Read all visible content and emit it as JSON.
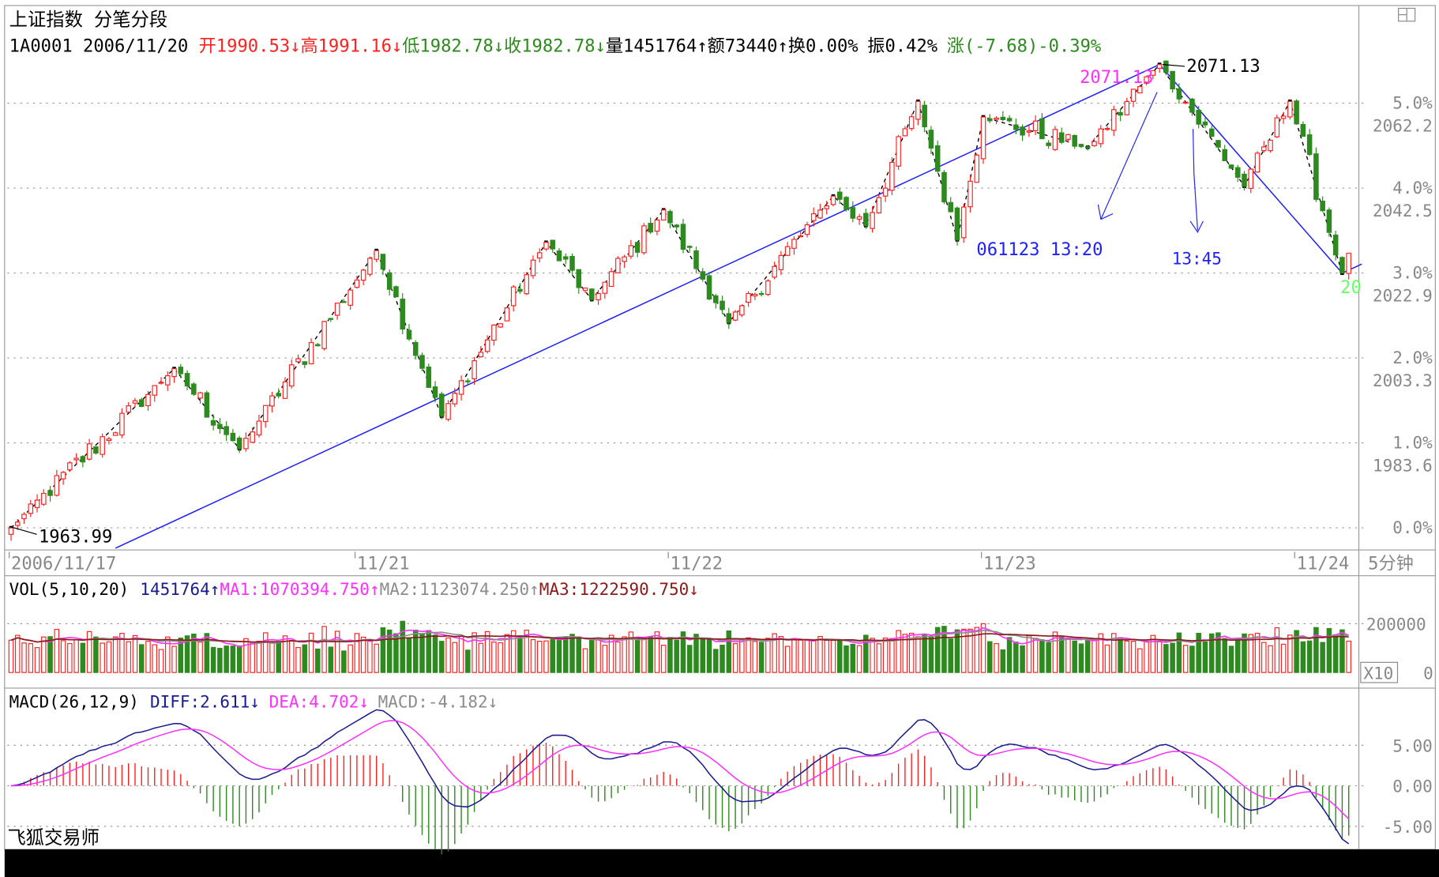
{
  "header": {
    "title": "上证指数 分笔分段",
    "code": "1A0001 2006/11/20 ",
    "open": "开1990.53↓",
    "high": "高1991.16↓",
    "low": "低1982.78↓",
    "close": "收1982.78↓",
    "volume": "量1451764↑",
    "amount": "额73440↑",
    "turnover": "换0.00%",
    "amplitude": "振0.42%",
    "change": "涨(-7.68)-0.39%"
  },
  "colors": {
    "up": "#ff2020",
    "down": "#2d8a1e",
    "trend": "#2020ff",
    "ma1": "#ff30ff",
    "ma2": "#8c8c8c",
    "ma3": "#8b1a1a",
    "diff": "#1a1a90",
    "dea": "#ff30ff"
  },
  "main": {
    "right_axis": [
      {
        "pct": "5.0%",
        "price": "2062.2",
        "value": 5
      },
      {
        "pct": "4.0%",
        "price": "2042.5",
        "value": 4
      },
      {
        "pct": "3.0%",
        "price": "2022.9",
        "value": 3
      },
      {
        "pct": "2.0%",
        "price": "2003.3",
        "value": 2
      },
      {
        "pct": "1.0%",
        "price": "1983.6",
        "value": 1
      },
      {
        "pct": "0.0%",
        "price": "",
        "value": 0
      }
    ],
    "annotations": {
      "low_label": "1963.99",
      "high_label": "2071.13",
      "high_label_magenta": "2071.13",
      "arrow1_label": "061123 13:20",
      "arrow2_label": "13:45",
      "end_label": "20"
    },
    "date_axis": [
      {
        "label": "2006/11/17",
        "bar": 0
      },
      {
        "label": "11/21",
        "bar": 53
      },
      {
        "label": "11/22",
        "bar": 101
      },
      {
        "label": "11/23",
        "bar": 149
      },
      {
        "label": "11/24",
        "bar": 197
      }
    ],
    "period": "5分钟"
  },
  "volume_panel": {
    "label": "VOL(5,10,20)",
    "value": "1451764↑",
    "ma1": "MA1:1070394.750↑",
    "ma2": "MA2:1123074.250↑",
    "ma3": "MA3:1222590.750↓",
    "axis_200000": "200000",
    "axis_0": "0",
    "unit": "X10"
  },
  "macd_panel": {
    "label": "MACD(26,12,9)",
    "diff": "DIFF:2.611↓",
    "dea": "DEA:4.702↓",
    "macd": "MACD:-4.182↓",
    "axis": [
      "5.00",
      "0.00",
      "-5.00"
    ]
  },
  "footer": "飞狐交易师",
  "chart_data": {
    "type": "candlestick",
    "title": "上证指数 分笔分段",
    "base_price": 1963.99,
    "bars": 206,
    "zigzag_pivots": [
      [
        0,
        1963.99
      ],
      [
        25,
        2000.8
      ],
      [
        35,
        1982.3
      ],
      [
        56,
        2028.1
      ],
      [
        66,
        1989.8
      ],
      [
        82,
        2030.0
      ],
      [
        89,
        2016.8
      ],
      [
        100,
        2037.5
      ],
      [
        110,
        2011.5
      ],
      [
        126,
        2040.7
      ],
      [
        131,
        2033.9
      ],
      [
        139,
        2062.6
      ],
      [
        145,
        2030.6
      ],
      [
        149,
        2059.0
      ],
      [
        165,
        2052.0
      ],
      [
        176,
        2071.13
      ],
      [
        189,
        2043.0
      ],
      [
        196,
        2062.6
      ],
      [
        204,
        2022.9
      ],
      [
        205,
        2027.5
      ]
    ],
    "trendline": [
      [
        16,
        1959.3
      ],
      [
        176,
        2071.13
      ],
      [
        204,
        2022.9
      ],
      [
        207,
        2025.0
      ]
    ],
    "volume_ylim": [
      0,
      200000
    ],
    "macd_ylim": [
      -5,
      5
    ]
  }
}
